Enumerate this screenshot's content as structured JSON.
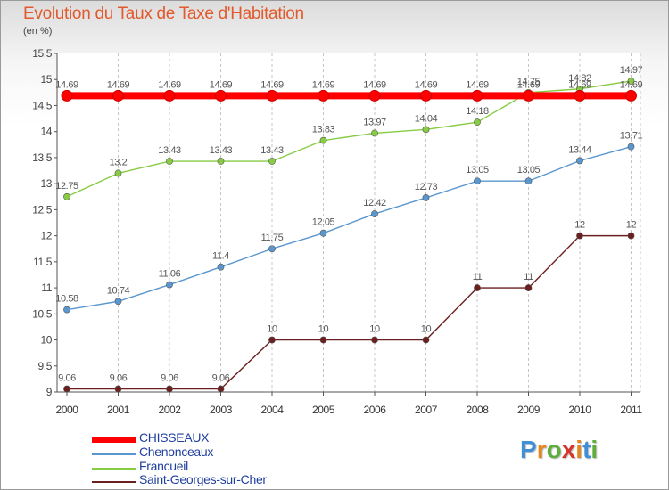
{
  "title": "Evolution du Taux de Taxe d'Habitation",
  "unit_label": "(en %)",
  "chart_data": {
    "type": "line",
    "title": "Evolution du Taux de Taxe d'Habitation",
    "ylabel": "(en %)",
    "x": [
      2000,
      2001,
      2002,
      2003,
      2004,
      2005,
      2006,
      2007,
      2008,
      2009,
      2010,
      2011
    ],
    "ylim": [
      9,
      15.5
    ],
    "yticks": [
      "9",
      "9.5",
      "10",
      "10.5",
      "11",
      "11.5",
      "12",
      "12.5",
      "13",
      "13.5",
      "14",
      "14.5",
      "15",
      "15.5"
    ],
    "grid": "vertical dashed",
    "legend_position": "bottom-left",
    "series": [
      {
        "name": "CHISSEAUX",
        "color": "#ff0000",
        "values": [
          14.69,
          14.69,
          14.69,
          14.69,
          14.69,
          14.69,
          14.69,
          14.69,
          14.69,
          14.69,
          14.69,
          14.69
        ],
        "labels": [
          "14.69",
          "14.69",
          "14.69",
          "14.69",
          "14.69",
          "14.69",
          "14.69",
          "14.69",
          "14.69",
          "14.69",
          "14.69",
          "14.69"
        ]
      },
      {
        "name": "Chenonceaux",
        "color": "#5b97cf",
        "values": [
          10.58,
          10.74,
          11.06,
          11.4,
          11.75,
          12.05,
          12.42,
          12.73,
          13.05,
          13.05,
          13.44,
          13.71
        ],
        "labels": [
          "10.58",
          "10.74",
          "11.06",
          "11.4",
          "11.75",
          "12.05",
          "12.42",
          "12.73",
          "13.05",
          "13.05",
          "13.44",
          "13.71"
        ]
      },
      {
        "name": "Francueil",
        "color": "#88cc44",
        "values": [
          12.75,
          13.2,
          13.43,
          13.43,
          13.43,
          13.83,
          13.97,
          14.04,
          14.18,
          14.75,
          14.82,
          14.97
        ],
        "labels": [
          "12.75",
          "13.2",
          "13.43",
          "13.43",
          "13.43",
          "13.83",
          "13.97",
          "14.04",
          "14.18",
          "14.75",
          "14.82",
          "14.97"
        ]
      },
      {
        "name": "Saint-Georges-sur-Cher",
        "color": "#6b1f1f",
        "values": [
          9.06,
          9.06,
          9.06,
          9.06,
          10,
          10,
          10,
          10,
          11,
          11,
          12,
          12
        ],
        "labels": [
          "9.06",
          "9.06",
          "9.06",
          "9.06",
          "10",
          "10",
          "10",
          "10",
          "11",
          "11",
          "12",
          "12"
        ]
      }
    ]
  },
  "logo": {
    "text": "Proxiti"
  }
}
